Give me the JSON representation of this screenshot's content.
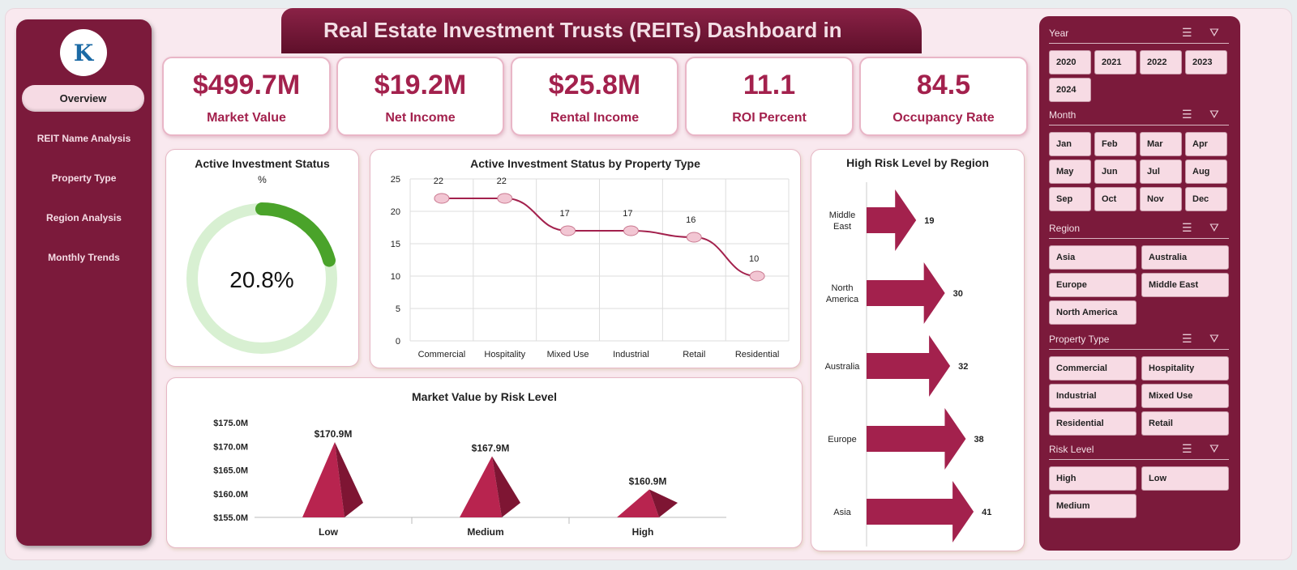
{
  "title": "Real Estate Investment Trusts (REITs) Dashboard in",
  "nav": [
    "Overview",
    "REIT Name Analysis",
    "Property Type",
    "Region Analysis",
    "Monthly Trends"
  ],
  "kpis": [
    {
      "value": "$499.7M",
      "label": "Market Value"
    },
    {
      "value": "$19.2M",
      "label": "Net Income"
    },
    {
      "value": "$25.8M",
      "label": "Rental Income"
    },
    {
      "value": "11.1",
      "label": "ROI Percent"
    },
    {
      "value": "84.5",
      "label": "Occupancy Rate"
    }
  ],
  "slicers": [
    {
      "title": "Year",
      "items": [
        "2020",
        "2021",
        "2022",
        "2023",
        "2024"
      ]
    },
    {
      "title": "Month",
      "items": [
        "Jan",
        "Feb",
        "Mar",
        "Apr",
        "May",
        "Jun",
        "Jul",
        "Aug",
        "Sep",
        "Oct",
        "Nov",
        "Dec"
      ]
    },
    {
      "title": "Region",
      "items": [
        "Asia",
        "Australia",
        "Europe",
        "Middle East",
        "North America"
      ]
    },
    {
      "title": "Property Type",
      "items": [
        "Commercial",
        "Hospitality",
        "Industrial",
        "Mixed Use",
        "Residential",
        "Retail"
      ]
    },
    {
      "title": "Risk Level",
      "items": [
        "High",
        "Low",
        "Medium"
      ]
    }
  ],
  "chart_data": [
    {
      "type": "pie",
      "title": "Active Investment Status",
      "subtitle": "%",
      "value": 20.8,
      "label": "20.8%",
      "colors": {
        "fill": "#4aa32a",
        "track": "#d8f0d2"
      }
    },
    {
      "type": "line",
      "title": "Active Investment Status by Property Type",
      "categories": [
        "Commercial",
        "Hospitality",
        "Mixed Use",
        "Industrial",
        "Retail",
        "Residential"
      ],
      "values": [
        22,
        22,
        17,
        17,
        16,
        10
      ],
      "ylim": [
        0,
        25
      ],
      "yticks": [
        "0",
        "5",
        "10",
        "15",
        "20",
        "25"
      ],
      "grid": true,
      "color": "#a3214d"
    },
    {
      "type": "bar",
      "orientation": "horizontal",
      "title": "High Risk Level by Region",
      "categories": [
        "Middle East",
        "North America",
        "Australia",
        "Europe",
        "Asia"
      ],
      "values": [
        19,
        30,
        32,
        38,
        41
      ],
      "color": "#a3214d"
    },
    {
      "type": "bar",
      "title": "Market Value by Risk Level",
      "categories": [
        "Low",
        "Medium",
        "High"
      ],
      "values": [
        170.9,
        167.9,
        160.9
      ],
      "labels": [
        "$170.9M",
        "$167.9M",
        "$160.9M"
      ],
      "ylim": [
        155,
        175
      ],
      "yticks": [
        "$155.0M",
        "$160.0M",
        "$165.0M",
        "$170.0M",
        "$175.0M"
      ],
      "color": "#a3214d"
    }
  ]
}
